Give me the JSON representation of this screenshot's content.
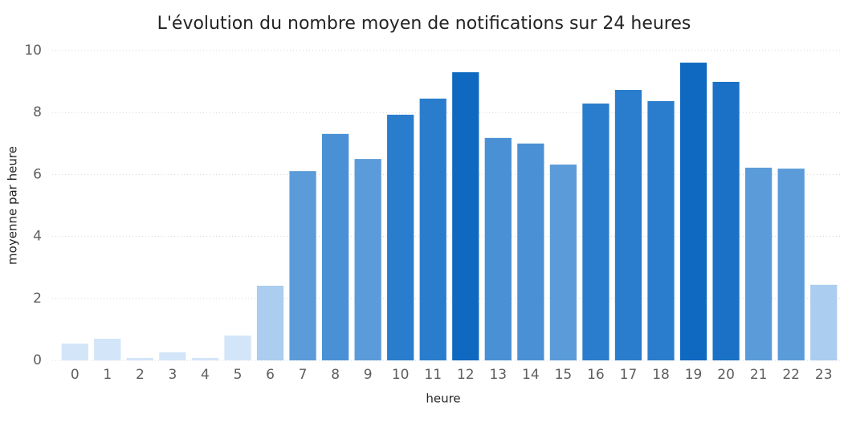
{
  "chart_data": {
    "type": "bar",
    "title": "L'évolution du nombre moyen de notifications sur 24 heures",
    "x_label": "heure",
    "y_label": "moyenne par heure",
    "categories": [
      "0",
      "1",
      "2",
      "3",
      "4",
      "5",
      "6",
      "7",
      "8",
      "9",
      "10",
      "11",
      "12",
      "13",
      "14",
      "15",
      "16",
      "17",
      "18",
      "19",
      "20",
      "21",
      "22",
      "23"
    ],
    "values": [
      0.54,
      0.7,
      0.08,
      0.26,
      0.08,
      0.8,
      2.41,
      6.11,
      7.31,
      6.5,
      7.93,
      8.45,
      9.3,
      7.18,
      7.0,
      6.32,
      8.29,
      8.73,
      8.37,
      9.61,
      8.99,
      6.22,
      6.19,
      2.44
    ],
    "colors": [
      "#d3e5f8",
      "#d3e5f8",
      "#d3e5f8",
      "#d3e5f8",
      "#d3e5f8",
      "#d3e5f8",
      "#abcdef",
      "#5b9bd9",
      "#4a90d4",
      "#5b9bd9",
      "#2a7dcc",
      "#2a7dcc",
      "#1069c1",
      "#4a90d4",
      "#4a90d4",
      "#5b9bd9",
      "#2a7dcc",
      "#2a7dcc",
      "#2a7dcc",
      "#1069c1",
      "#1a71c5",
      "#5b9bd9",
      "#5b9bd9",
      "#abcdef"
    ],
    "ylim": [
      0,
      10
    ],
    "yticks": [
      0,
      2,
      4,
      6,
      8,
      10
    ],
    "grid": true
  }
}
